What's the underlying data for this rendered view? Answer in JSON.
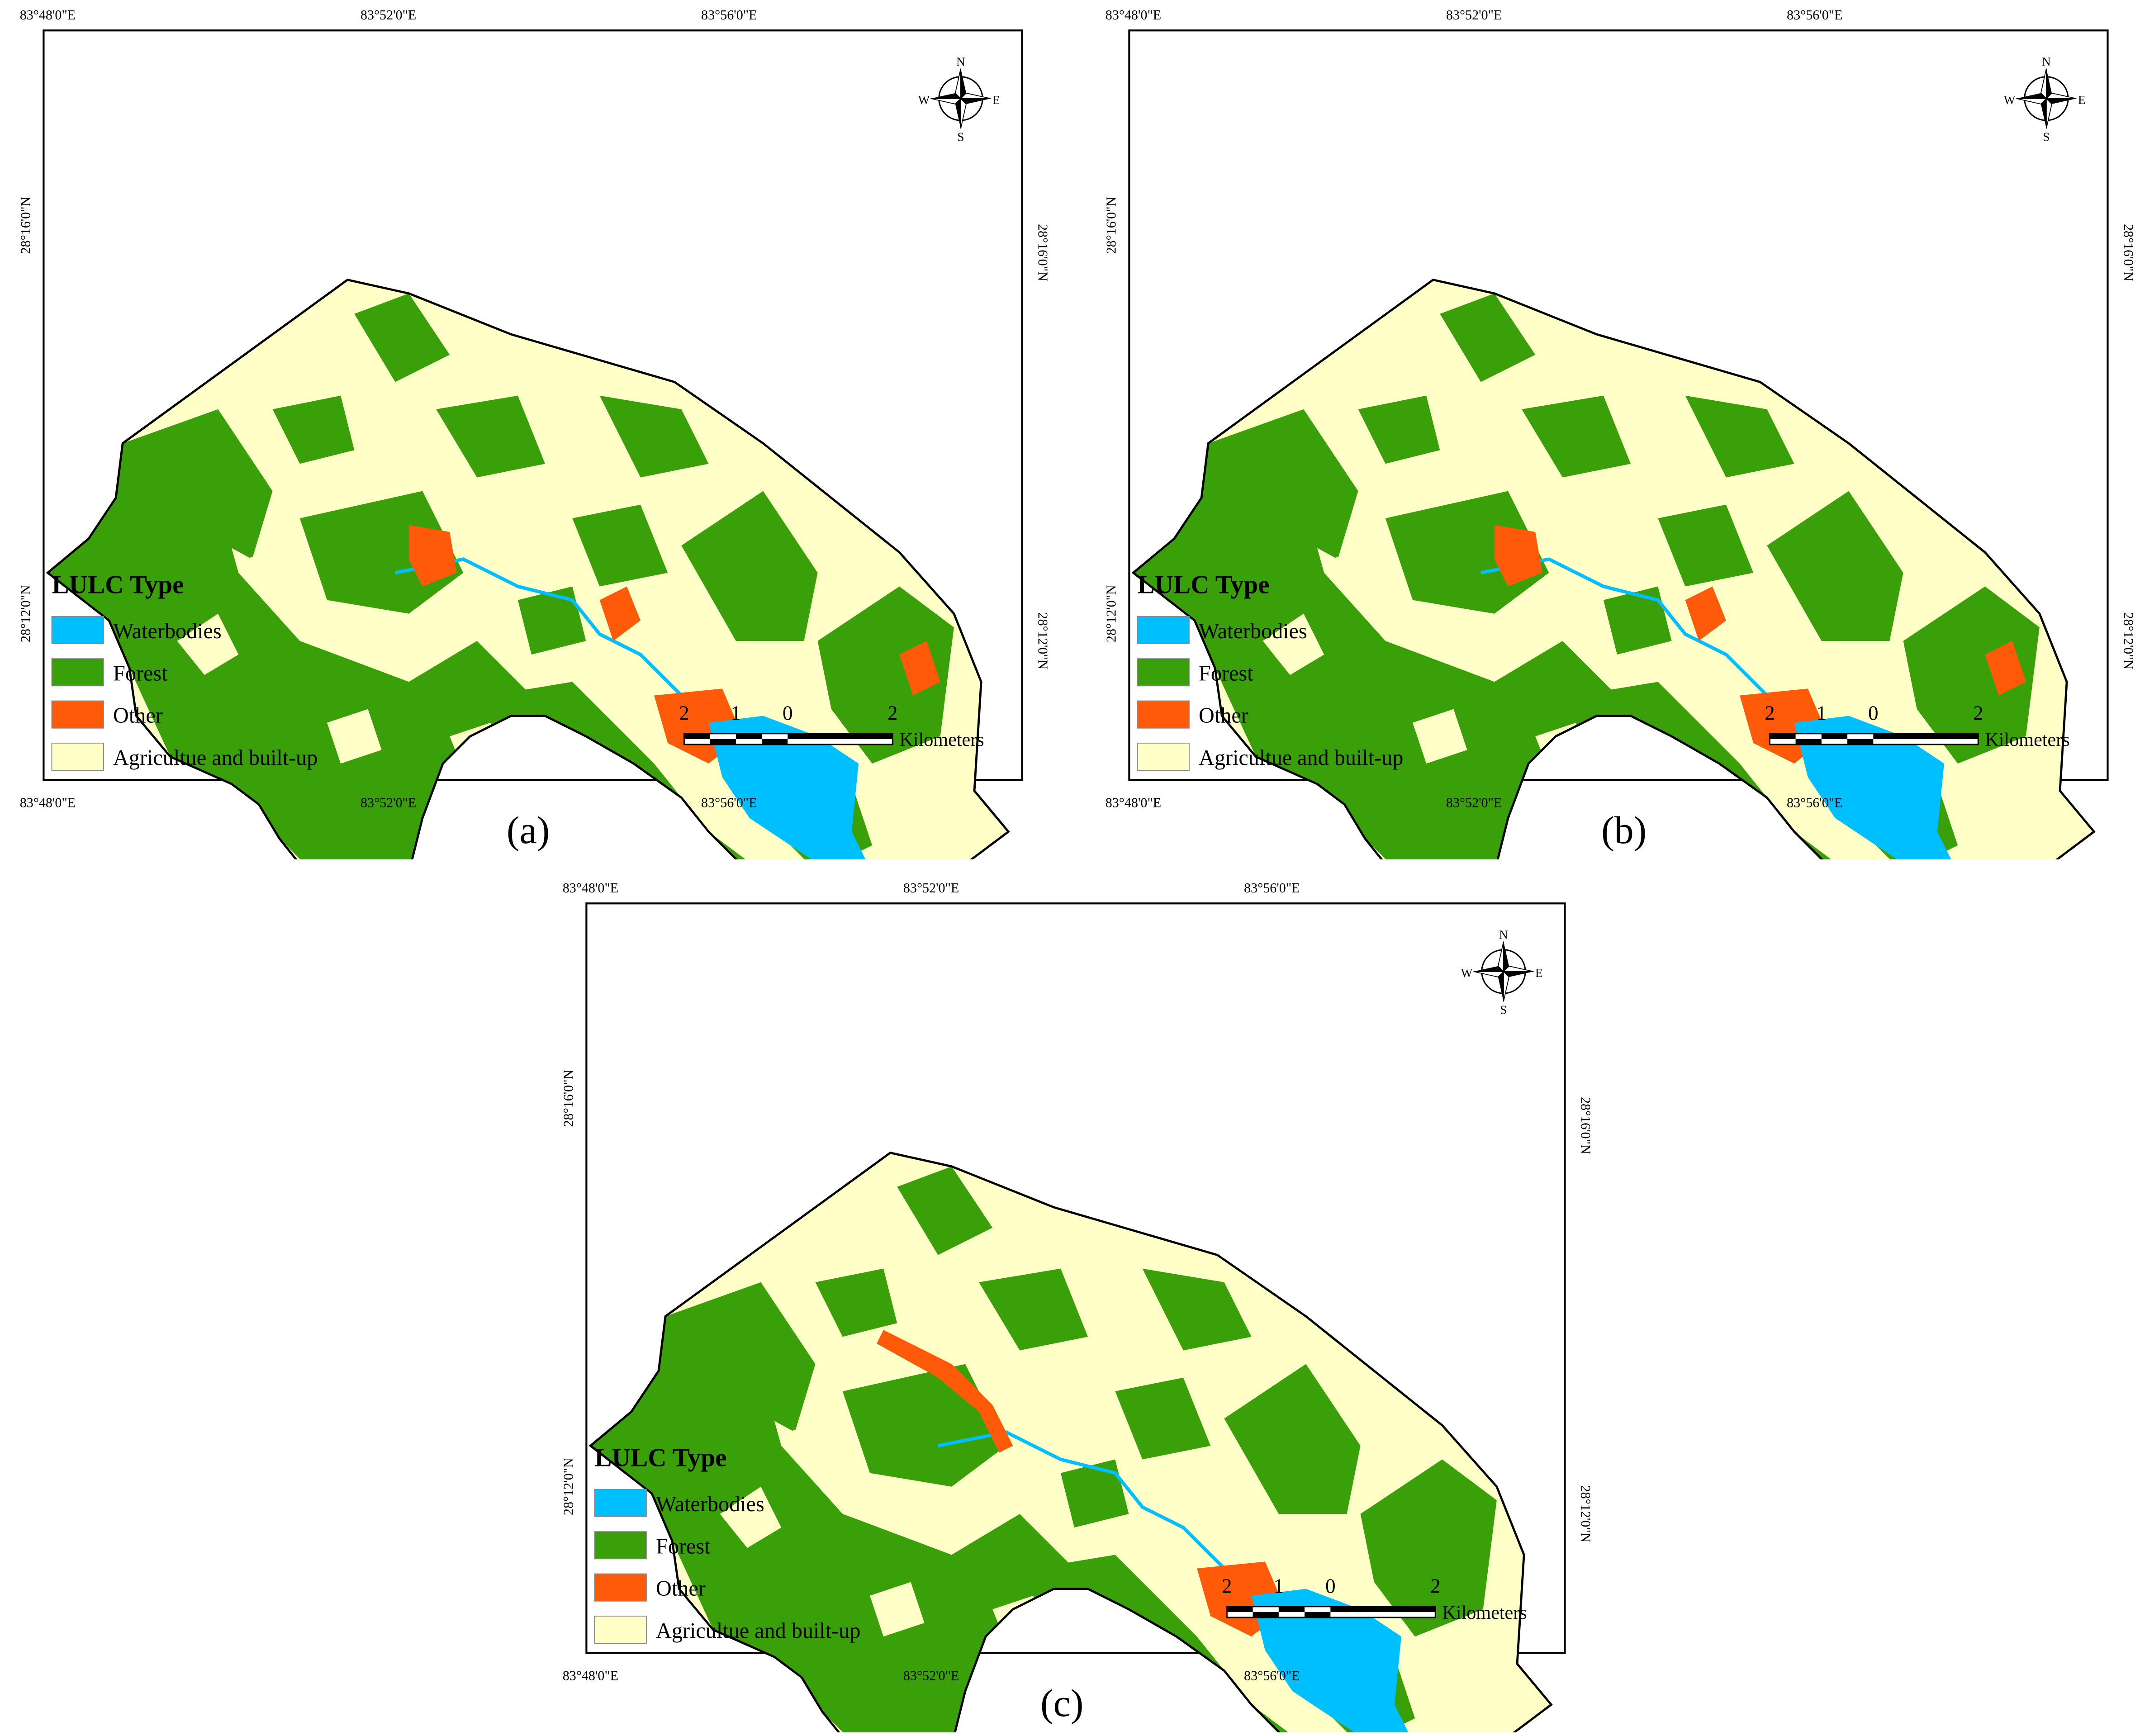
{
  "legend": {
    "title": "LULC Type",
    "items": [
      {
        "label": "Waterbodies",
        "color": "#00bfff"
      },
      {
        "label": "Forest",
        "color": "#3aa00a"
      },
      {
        "label": "Other",
        "color": "#ff5a0a"
      },
      {
        "label": "Agricultue and built-up",
        "color": "#ffffc8"
      }
    ]
  },
  "coordinates": {
    "lon": [
      "83°48'0\"E",
      "83°52'0\"E",
      "83°56'0\"E"
    ],
    "lat": [
      "28°16'0\"N",
      "28°12'0\"N"
    ]
  },
  "scale_bar": {
    "labels": [
      "2",
      "1",
      "0",
      "2"
    ],
    "unit": "Kilometers"
  },
  "north_arrow": {
    "icon": "compass-rose-icon",
    "n": "N",
    "s": "S",
    "e": "E",
    "w": "W"
  },
  "panels": [
    {
      "id": "a",
      "caption": "(a)"
    },
    {
      "id": "b",
      "caption": "(b)"
    },
    {
      "id": "c",
      "caption": "(c)"
    }
  ]
}
